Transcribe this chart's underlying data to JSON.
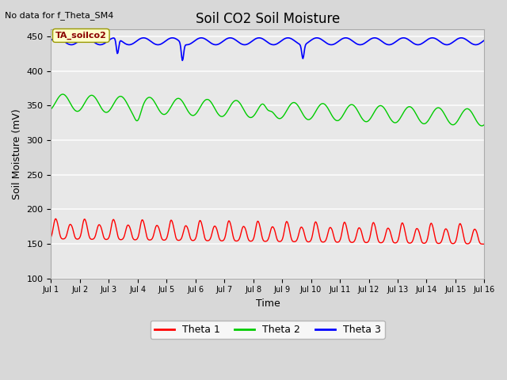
{
  "title": "Soil CO2 Soil Moisture",
  "no_data_text": "No data for f_Theta_SM4",
  "annotation_text": "TA_soilco2",
  "xlabel": "Time",
  "ylabel": "Soil Moisture (mV)",
  "ylim": [
    100,
    460
  ],
  "yticks": [
    100,
    150,
    200,
    250,
    300,
    350,
    400,
    450
  ],
  "xlim": [
    0,
    15
  ],
  "xtick_labels": [
    "Jul 1",
    "Jul 2",
    "Jul 3",
    "Jul 4",
    "Jul 5",
    "Jul 6",
    "Jul 7",
    "Jul 8",
    "Jul 9",
    "Jul 10",
    "Jul 11",
    "Jul 12",
    "Jul 13",
    "Jul 14",
    "Jul 15",
    "Jul 16"
  ],
  "bg_color": "#d8d8d8",
  "plot_bg_color": "#e8e8e8",
  "grid_color": "#f8f8f8",
  "theta1_color": "#ff0000",
  "theta2_color": "#00cc00",
  "theta3_color": "#0000ff",
  "legend_labels": [
    "Theta 1",
    "Theta 2",
    "Theta 3"
  ],
  "title_fontsize": 12,
  "axis_label_fontsize": 9,
  "tick_fontsize": 8
}
